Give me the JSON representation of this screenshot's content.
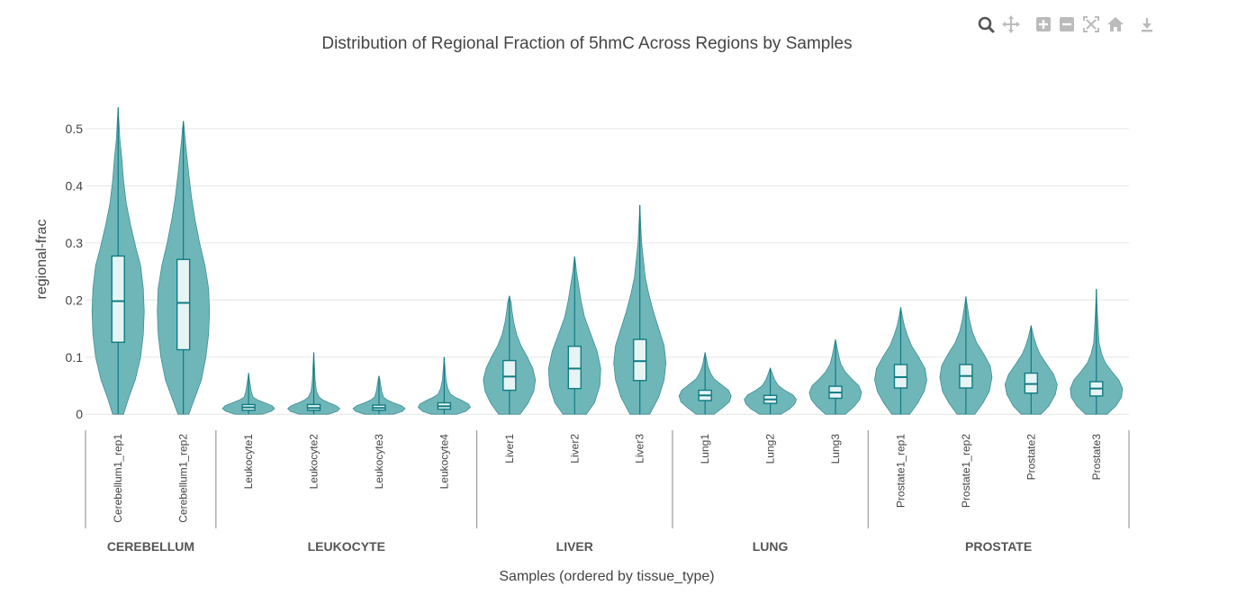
{
  "modebar": {
    "icons": [
      "zoom-icon",
      "pan-icon",
      "zoom-in-icon",
      "zoom-out-icon",
      "autoscale-icon",
      "reset-axes-icon",
      "download-icon"
    ]
  },
  "colors": {
    "violin_fill": "#6fb6b9",
    "violin_stroke": "#3f8f93",
    "box_fill": "#e6f4f5",
    "box_stroke": "#0f7c82",
    "grid": "#e6e6e6",
    "divider": "#888888"
  },
  "chart_data": {
    "type": "violin",
    "title": "Distribution of Regional Fraction of 5hmC Across Regions by Samples",
    "xlabel": "Samples (ordered by tissue_type)",
    "ylabel": "regional-frac",
    "ylim": [
      -0.017,
      0.555
    ],
    "yticks": [
      {
        "value": 0,
        "label": "0"
      },
      {
        "value": 0.1,
        "label": "0.1"
      },
      {
        "value": 0.2,
        "label": "0.2"
      },
      {
        "value": 0.3,
        "label": "0.3"
      },
      {
        "value": 0.4,
        "label": "0.4"
      },
      {
        "value": 0.5,
        "label": "0.5"
      }
    ],
    "grid": true,
    "groups": [
      {
        "label": "CEREBELLUM",
        "start": 0,
        "end": 1
      },
      {
        "label": "LEUKOCYTE",
        "start": 2,
        "end": 5
      },
      {
        "label": "LIVER",
        "start": 6,
        "end": 8
      },
      {
        "label": "LUNG",
        "start": 9,
        "end": 11
      },
      {
        "label": "PROSTATE",
        "start": 12,
        "end": 15
      }
    ],
    "samples": [
      {
        "name": "Cerebellum1_rep1",
        "min": 0,
        "q1": 0.126,
        "median": 0.198,
        "q3": 0.277,
        "max": 0.537,
        "half_width": 29,
        "profile": [
          [
            0.0,
            6
          ],
          [
            0.03,
            12
          ],
          [
            0.06,
            19
          ],
          [
            0.1,
            25
          ],
          [
            0.14,
            28
          ],
          [
            0.18,
            29
          ],
          [
            0.22,
            28
          ],
          [
            0.26,
            25
          ],
          [
            0.29,
            20
          ],
          [
            0.33,
            14
          ],
          [
            0.37,
            9
          ],
          [
            0.41,
            6
          ],
          [
            0.45,
            4
          ],
          [
            0.48,
            2
          ],
          [
            0.51,
            1
          ],
          [
            0.537,
            0
          ]
        ]
      },
      {
        "name": "Cerebellum1_rep2",
        "min": 0,
        "q1": 0.113,
        "median": 0.195,
        "q3": 0.271,
        "max": 0.513,
        "half_width": 29,
        "profile": [
          [
            0.0,
            6
          ],
          [
            0.03,
            13
          ],
          [
            0.06,
            20
          ],
          [
            0.1,
            25
          ],
          [
            0.14,
            28
          ],
          [
            0.18,
            29
          ],
          [
            0.22,
            28
          ],
          [
            0.26,
            24
          ],
          [
            0.3,
            18
          ],
          [
            0.34,
            13
          ],
          [
            0.38,
            9
          ],
          [
            0.42,
            6
          ],
          [
            0.45,
            4
          ],
          [
            0.48,
            2
          ],
          [
            0.5,
            1
          ],
          [
            0.513,
            0
          ]
        ]
      },
      {
        "name": "Leukocyte1",
        "min": 0,
        "q1": 0.007,
        "median": 0.012,
        "q3": 0.017,
        "max": 0.072,
        "half_width": 29,
        "profile": [
          [
            0.0,
            15
          ],
          [
            0.005,
            25
          ],
          [
            0.01,
            29
          ],
          [
            0.015,
            26
          ],
          [
            0.02,
            18
          ],
          [
            0.025,
            10
          ],
          [
            0.03,
            5
          ],
          [
            0.04,
            3
          ],
          [
            0.05,
            2
          ],
          [
            0.06,
            1
          ],
          [
            0.072,
            0
          ]
        ]
      },
      {
        "name": "Leukocyte2",
        "min": 0,
        "q1": 0.007,
        "median": 0.011,
        "q3": 0.017,
        "max": 0.108,
        "half_width": 29,
        "profile": [
          [
            0.0,
            16
          ],
          [
            0.005,
            26
          ],
          [
            0.01,
            29
          ],
          [
            0.015,
            25
          ],
          [
            0.02,
            17
          ],
          [
            0.025,
            10
          ],
          [
            0.03,
            6
          ],
          [
            0.04,
            3
          ],
          [
            0.06,
            1.5
          ],
          [
            0.08,
            1
          ],
          [
            0.108,
            0
          ]
        ]
      },
      {
        "name": "Leukocyte3",
        "min": 0,
        "q1": 0.007,
        "median": 0.011,
        "q3": 0.016,
        "max": 0.067,
        "half_width": 29,
        "profile": [
          [
            0.0,
            16
          ],
          [
            0.005,
            26
          ],
          [
            0.01,
            29
          ],
          [
            0.015,
            25
          ],
          [
            0.02,
            16
          ],
          [
            0.025,
            9
          ],
          [
            0.03,
            5
          ],
          [
            0.04,
            3
          ],
          [
            0.05,
            2
          ],
          [
            0.06,
            1
          ],
          [
            0.067,
            0
          ]
        ]
      },
      {
        "name": "Leukocyte4",
        "min": 0,
        "q1": 0.009,
        "median": 0.014,
        "q3": 0.02,
        "max": 0.1,
        "half_width": 29,
        "profile": [
          [
            0.0,
            14
          ],
          [
            0.005,
            24
          ],
          [
            0.012,
            29
          ],
          [
            0.018,
            27
          ],
          [
            0.024,
            20
          ],
          [
            0.03,
            12
          ],
          [
            0.035,
            7
          ],
          [
            0.045,
            4
          ],
          [
            0.06,
            2
          ],
          [
            0.08,
            1
          ],
          [
            0.1,
            0
          ]
        ]
      },
      {
        "name": "Liver1",
        "min": 0,
        "q1": 0.042,
        "median": 0.066,
        "q3": 0.094,
        "max": 0.207,
        "half_width": 29,
        "profile": [
          [
            0.0,
            12
          ],
          [
            0.02,
            21
          ],
          [
            0.04,
            27
          ],
          [
            0.06,
            29
          ],
          [
            0.08,
            26
          ],
          [
            0.1,
            20
          ],
          [
            0.12,
            13
          ],
          [
            0.14,
            8
          ],
          [
            0.16,
            5
          ],
          [
            0.18,
            3
          ],
          [
            0.195,
            2
          ],
          [
            0.207,
            0
          ]
        ]
      },
      {
        "name": "Liver2",
        "min": 0,
        "q1": 0.045,
        "median": 0.08,
        "q3": 0.119,
        "max": 0.276,
        "half_width": 29,
        "profile": [
          [
            0.0,
            13
          ],
          [
            0.02,
            22
          ],
          [
            0.05,
            28
          ],
          [
            0.08,
            29
          ],
          [
            0.11,
            25
          ],
          [
            0.14,
            18
          ],
          [
            0.17,
            11
          ],
          [
            0.2,
            7
          ],
          [
            0.23,
            4
          ],
          [
            0.25,
            2
          ],
          [
            0.265,
            1
          ],
          [
            0.276,
            0
          ]
        ]
      },
      {
        "name": "Liver3",
        "min": 0,
        "q1": 0.059,
        "median": 0.093,
        "q3": 0.131,
        "max": 0.366,
        "half_width": 29,
        "profile": [
          [
            0.0,
            11
          ],
          [
            0.03,
            21
          ],
          [
            0.06,
            27
          ],
          [
            0.09,
            29
          ],
          [
            0.12,
            27
          ],
          [
            0.15,
            21
          ],
          [
            0.18,
            15
          ],
          [
            0.21,
            10
          ],
          [
            0.24,
            6
          ],
          [
            0.27,
            4
          ],
          [
            0.3,
            2
          ],
          [
            0.33,
            1
          ],
          [
            0.366,
            0
          ]
        ]
      },
      {
        "name": "Lung1",
        "min": 0,
        "q1": 0.024,
        "median": 0.033,
        "q3": 0.042,
        "max": 0.108,
        "half_width": 29,
        "profile": [
          [
            0.0,
            10
          ],
          [
            0.012,
            20
          ],
          [
            0.022,
            27
          ],
          [
            0.032,
            29
          ],
          [
            0.042,
            26
          ],
          [
            0.052,
            18
          ],
          [
            0.062,
            10
          ],
          [
            0.072,
            6
          ],
          [
            0.085,
            3
          ],
          [
            0.097,
            1.5
          ],
          [
            0.108,
            0
          ]
        ]
      },
      {
        "name": "Lung2",
        "min": 0,
        "q1": 0.019,
        "median": 0.026,
        "q3": 0.033,
        "max": 0.081,
        "half_width": 29,
        "profile": [
          [
            0.0,
            12
          ],
          [
            0.01,
            22
          ],
          [
            0.018,
            27
          ],
          [
            0.026,
            29
          ],
          [
            0.034,
            25
          ],
          [
            0.042,
            16
          ],
          [
            0.05,
            9
          ],
          [
            0.06,
            5
          ],
          [
            0.07,
            2.5
          ],
          [
            0.081,
            0
          ]
        ]
      },
      {
        "name": "Lung3",
        "min": 0,
        "q1": 0.028,
        "median": 0.038,
        "q3": 0.049,
        "max": 0.131,
        "half_width": 29,
        "profile": [
          [
            0.0,
            11
          ],
          [
            0.014,
            21
          ],
          [
            0.026,
            27
          ],
          [
            0.038,
            29
          ],
          [
            0.05,
            26
          ],
          [
            0.062,
            18
          ],
          [
            0.074,
            11
          ],
          [
            0.088,
            6
          ],
          [
            0.1,
            4
          ],
          [
            0.115,
            2
          ],
          [
            0.131,
            0
          ]
        ]
      },
      {
        "name": "Prostate1_rep1",
        "min": 0,
        "q1": 0.046,
        "median": 0.065,
        "q3": 0.087,
        "max": 0.187,
        "half_width": 29,
        "profile": [
          [
            0.0,
            10
          ],
          [
            0.02,
            19
          ],
          [
            0.04,
            26
          ],
          [
            0.06,
            29
          ],
          [
            0.08,
            27
          ],
          [
            0.1,
            20
          ],
          [
            0.12,
            12
          ],
          [
            0.14,
            7
          ],
          [
            0.155,
            4
          ],
          [
            0.17,
            2
          ],
          [
            0.187,
            0
          ]
        ]
      },
      {
        "name": "Prostate1_rep2",
        "min": 0,
        "q1": 0.046,
        "median": 0.067,
        "q3": 0.087,
        "max": 0.206,
        "half_width": 29,
        "profile": [
          [
            0.0,
            10
          ],
          [
            0.02,
            19
          ],
          [
            0.04,
            26
          ],
          [
            0.065,
            29
          ],
          [
            0.085,
            27
          ],
          [
            0.105,
            20
          ],
          [
            0.125,
            12
          ],
          [
            0.145,
            7
          ],
          [
            0.165,
            4
          ],
          [
            0.185,
            2
          ],
          [
            0.206,
            0
          ]
        ]
      },
      {
        "name": "Prostate2",
        "min": 0,
        "q1": 0.037,
        "median": 0.053,
        "q3": 0.072,
        "max": 0.155,
        "half_width": 29,
        "profile": [
          [
            0.0,
            11
          ],
          [
            0.015,
            20
          ],
          [
            0.035,
            27
          ],
          [
            0.052,
            29
          ],
          [
            0.07,
            25
          ],
          [
            0.088,
            17
          ],
          [
            0.105,
            10
          ],
          [
            0.12,
            6
          ],
          [
            0.135,
            3
          ],
          [
            0.155,
            0
          ]
        ]
      },
      {
        "name": "Prostate3",
        "min": 0,
        "q1": 0.032,
        "median": 0.045,
        "q3": 0.057,
        "max": 0.219,
        "half_width": 29,
        "profile": [
          [
            0.0,
            12
          ],
          [
            0.015,
            22
          ],
          [
            0.03,
            28
          ],
          [
            0.045,
            29
          ],
          [
            0.06,
            25
          ],
          [
            0.075,
            17
          ],
          [
            0.09,
            10
          ],
          [
            0.105,
            6
          ],
          [
            0.125,
            3
          ],
          [
            0.15,
            2
          ],
          [
            0.18,
            1
          ],
          [
            0.219,
            0
          ]
        ]
      }
    ]
  }
}
